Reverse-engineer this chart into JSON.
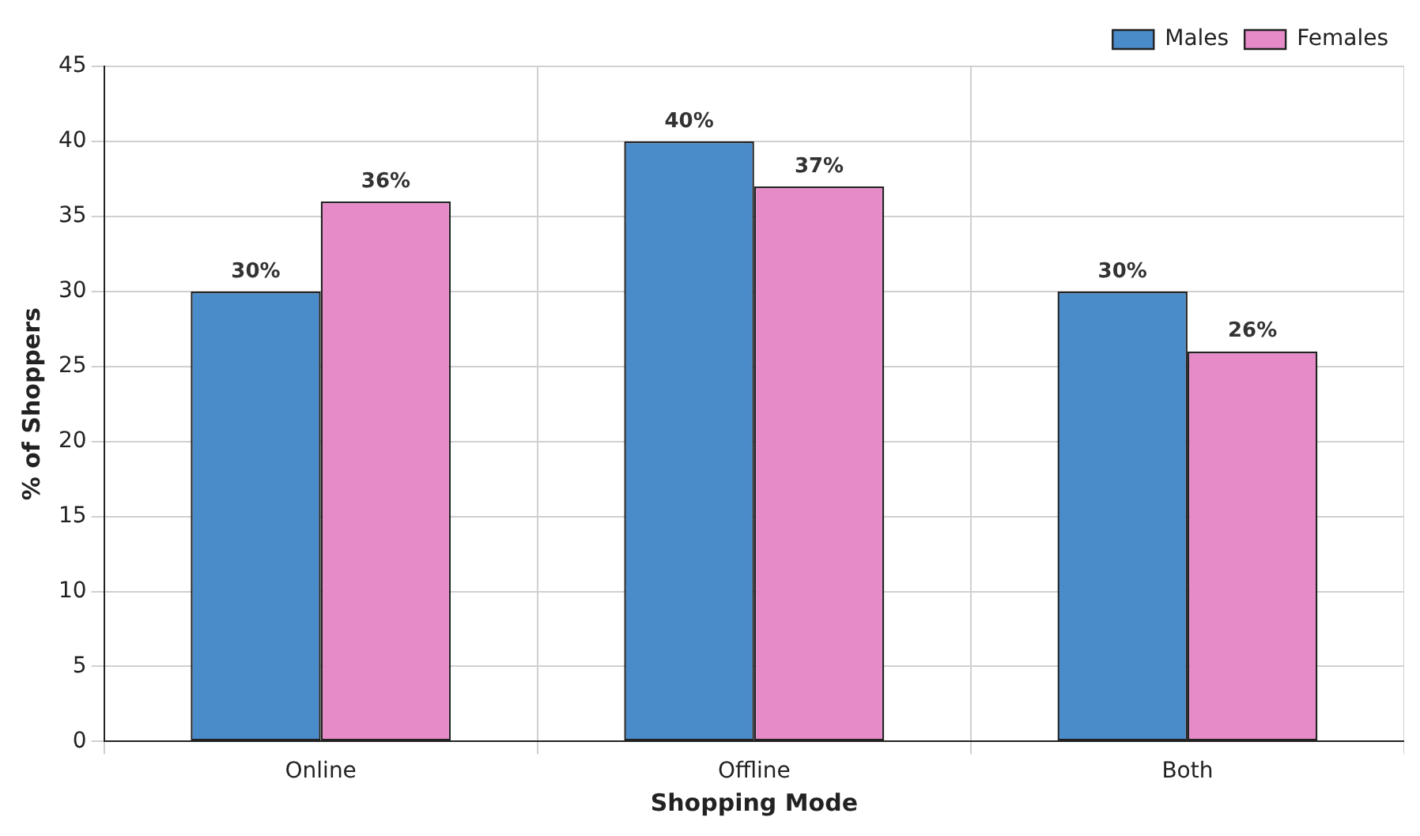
{
  "chart_data": {
    "type": "bar",
    "xlabel": "Shopping Mode",
    "ylabel": "% of Shoppers",
    "categories": [
      "Online",
      "Offline",
      "Both"
    ],
    "series": [
      {
        "name": "Males",
        "color": "#4a8bc9",
        "values": [
          30,
          40,
          30
        ],
        "value_labels": [
          "30%",
          "40%",
          "30%"
        ]
      },
      {
        "name": "Females",
        "color": "#e68bc8",
        "values": [
          36,
          37,
          26
        ],
        "value_labels": [
          "36%",
          "37%",
          "26%"
        ]
      }
    ],
    "ylim": [
      0,
      45
    ],
    "yticks": [
      0,
      5,
      10,
      15,
      20,
      25,
      30,
      35,
      40,
      45
    ],
    "grid": true,
    "legend": "top right"
  }
}
